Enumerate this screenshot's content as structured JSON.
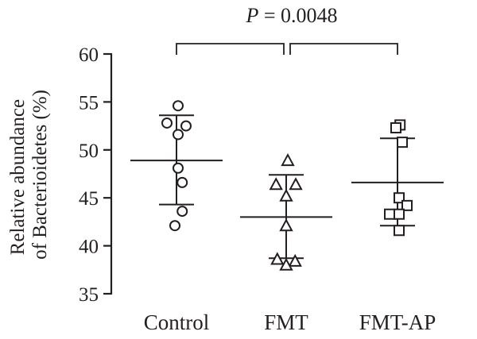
{
  "chart_data": {
    "type": "scatter",
    "ylabel_lines": [
      "Relative abundance",
      "of Bacterioidetes (%)"
    ],
    "ylim": [
      35,
      60
    ],
    "yticks": [
      35,
      40,
      45,
      50,
      55,
      60
    ],
    "categories": [
      "Control",
      "FMT",
      "FMT-AP"
    ],
    "annotation": {
      "prefix": "P",
      "text": " = 0.0048"
    },
    "series": [
      {
        "category": "Control",
        "marker": "circle",
        "points": [
          {
            "offset": 0.05,
            "y": 54.6
          },
          {
            "offset": -0.3,
            "y": 52.8
          },
          {
            "offset": 0.3,
            "y": 52.5
          },
          {
            "offset": 0.05,
            "y": 51.6
          },
          {
            "offset": 0.05,
            "y": 48.1
          },
          {
            "offset": 0.18,
            "y": 46.6
          },
          {
            "offset": 0.18,
            "y": 43.6
          },
          {
            "offset": -0.05,
            "y": 42.1
          }
        ],
        "mean": 48.9,
        "sd_low": 44.3,
        "sd_high": 53.6
      },
      {
        "category": "FMT",
        "marker": "triangle",
        "points": [
          {
            "offset": 0.05,
            "y": 48.9
          },
          {
            "offset": -0.32,
            "y": 46.4
          },
          {
            "offset": 0.3,
            "y": 46.4
          },
          {
            "offset": 0.0,
            "y": 45.2
          },
          {
            "offset": 0.0,
            "y": 42.1
          },
          {
            "offset": -0.28,
            "y": 38.6
          },
          {
            "offset": 0.28,
            "y": 38.4
          },
          {
            "offset": 0.0,
            "y": 38.0
          }
        ],
        "mean": 43.0,
        "sd_low": 38.7,
        "sd_high": 47.4
      },
      {
        "category": "FMT-AP",
        "marker": "square",
        "points": [
          {
            "offset": 0.08,
            "y": 52.6
          },
          {
            "offset": -0.05,
            "y": 52.3
          },
          {
            "offset": 0.15,
            "y": 50.8
          },
          {
            "offset": 0.05,
            "y": 45.0
          },
          {
            "offset": 0.3,
            "y": 44.2
          },
          {
            "offset": -0.25,
            "y": 43.3
          },
          {
            "offset": 0.05,
            "y": 43.3
          },
          {
            "offset": 0.05,
            "y": 41.6
          }
        ],
        "mean": 46.6,
        "sd_low": 42.1,
        "sd_high": 51.2
      }
    ]
  }
}
